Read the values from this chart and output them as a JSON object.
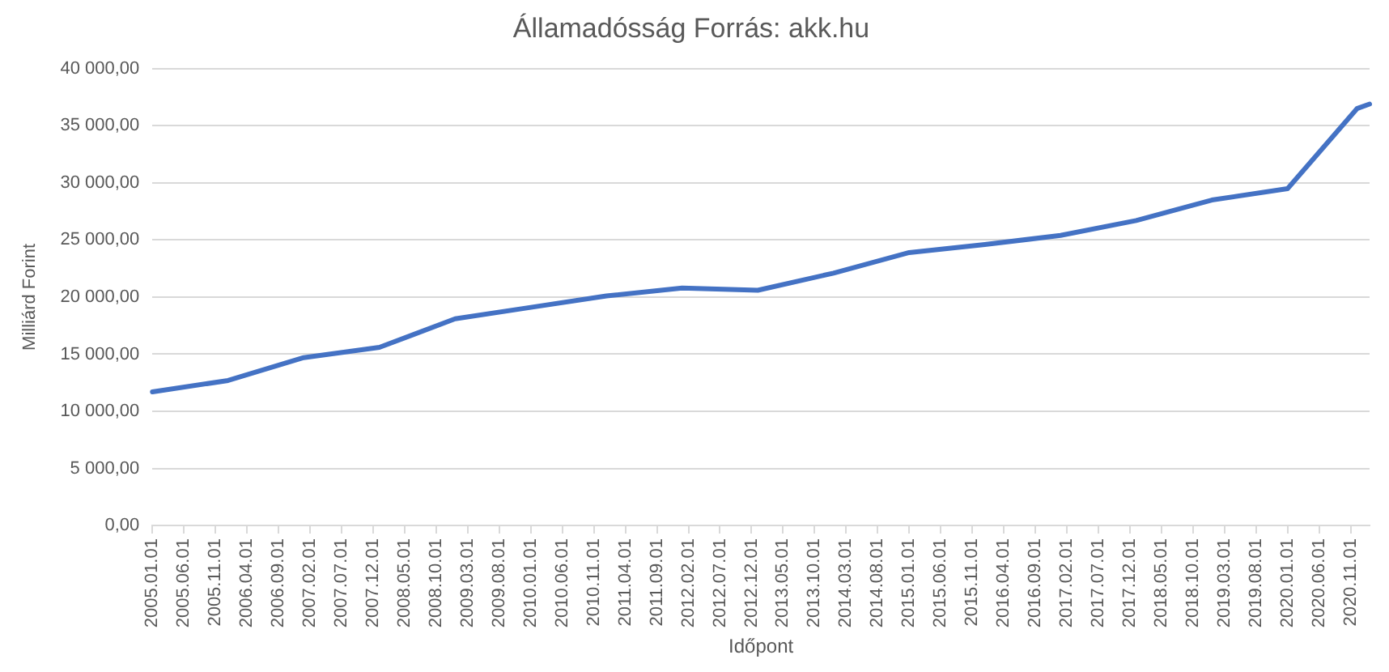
{
  "chart_data": {
    "type": "line",
    "title": "Államadósság Forrás: akk.hu",
    "xlabel": "Időpont",
    "ylabel": "Milliárd Forint",
    "x": [
      "2005-01-01",
      "2006-01-01",
      "2007-01-01",
      "2008-01-01",
      "2009-01-01",
      "2010-01-01",
      "2011-01-01",
      "2012-01-01",
      "2013-01-01",
      "2014-01-01",
      "2015-01-01",
      "2016-01-01",
      "2017-01-01",
      "2018-01-01",
      "2019-01-01",
      "2020-01-01",
      "2020-12-01",
      "2021-02-01"
    ],
    "series": [
      {
        "color": "#4472c4",
        "values": [
          11700,
          12700,
          14700,
          15600,
          18100,
          19100,
          20100,
          20800,
          20600,
          22100,
          23900,
          24600,
          25400,
          26700,
          28500,
          29500,
          36500,
          36900
        ]
      }
    ],
    "xlim": [
      "2005-01-01",
      "2021-02-01"
    ],
    "xticks": [
      {
        "value": "2005-01-01",
        "label": "2005.01.01"
      },
      {
        "value": "2005-06-01",
        "label": "2005.06.01"
      },
      {
        "value": "2005-11-01",
        "label": "2005.11.01"
      },
      {
        "value": "2006-04-01",
        "label": "2006.04.01"
      },
      {
        "value": "2006-09-01",
        "label": "2006.09.01"
      },
      {
        "value": "2007-02-01",
        "label": "2007.02.01"
      },
      {
        "value": "2007-07-01",
        "label": "2007.07.01"
      },
      {
        "value": "2007-12-01",
        "label": "2007.12.01"
      },
      {
        "value": "2008-05-01",
        "label": "2008.05.01"
      },
      {
        "value": "2008-10-01",
        "label": "2008.10.01"
      },
      {
        "value": "2009-03-01",
        "label": "2009.03.01"
      },
      {
        "value": "2009-08-01",
        "label": "2009.08.01"
      },
      {
        "value": "2010-01-01",
        "label": "2010.01.01"
      },
      {
        "value": "2010-06-01",
        "label": "2010.06.01"
      },
      {
        "value": "2010-11-01",
        "label": "2010.11.01"
      },
      {
        "value": "2011-04-01",
        "label": "2011.04.01"
      },
      {
        "value": "2011-09-01",
        "label": "2011.09.01"
      },
      {
        "value": "2012-02-01",
        "label": "2012.02.01"
      },
      {
        "value": "2012-07-01",
        "label": "2012.07.01"
      },
      {
        "value": "2012-12-01",
        "label": "2012.12.01"
      },
      {
        "value": "2013-05-01",
        "label": "2013.05.01"
      },
      {
        "value": "2013-10-01",
        "label": "2013.10.01"
      },
      {
        "value": "2014-03-01",
        "label": "2014.03.01"
      },
      {
        "value": "2014-08-01",
        "label": "2014.08.01"
      },
      {
        "value": "2015-01-01",
        "label": "2015.01.01"
      },
      {
        "value": "2015-06-01",
        "label": "2015.06.01"
      },
      {
        "value": "2015-11-01",
        "label": "2015.11.01"
      },
      {
        "value": "2016-04-01",
        "label": "2016.04.01"
      },
      {
        "value": "2016-09-01",
        "label": "2016.09.01"
      },
      {
        "value": "2017-02-01",
        "label": "2017.02.01"
      },
      {
        "value": "2017-07-01",
        "label": "2017.07.01"
      },
      {
        "value": "2017-12-01",
        "label": "2017.12.01"
      },
      {
        "value": "2018-05-01",
        "label": "2018.05.01"
      },
      {
        "value": "2018-10-01",
        "label": "2018.10.01"
      },
      {
        "value": "2019-03-01",
        "label": "2019.03.01"
      },
      {
        "value": "2019-08-01",
        "label": "2019.08.01"
      },
      {
        "value": "2020-01-01",
        "label": "2020.01.01"
      },
      {
        "value": "2020-06-01",
        "label": "2020.06.01"
      },
      {
        "value": "2020-11-01",
        "label": "2020.11.01"
      }
    ],
    "ylim": [
      0,
      40000
    ],
    "yticks": [
      {
        "value": 0,
        "label": "0,00"
      },
      {
        "value": 5000,
        "label": "5 000,00"
      },
      {
        "value": 10000,
        "label": "10 000,00"
      },
      {
        "value": 15000,
        "label": "15 000,00"
      },
      {
        "value": 20000,
        "label": "20 000,00"
      },
      {
        "value": 25000,
        "label": "25 000,00"
      },
      {
        "value": 30000,
        "label": "30 000,00"
      },
      {
        "value": 35000,
        "label": "35 000,00"
      },
      {
        "value": 40000,
        "label": "40 000,00"
      }
    ],
    "grid": "y",
    "legend": false,
    "marker": "none",
    "line_style": "solid"
  }
}
